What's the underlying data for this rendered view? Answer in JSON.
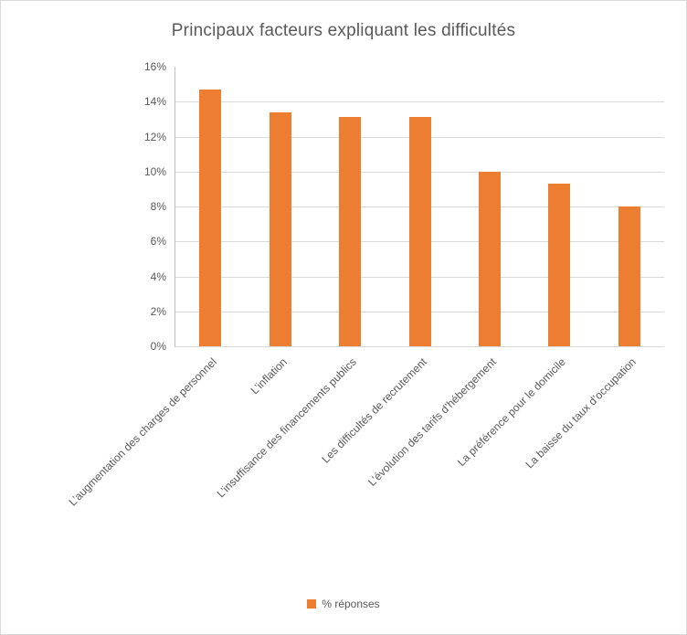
{
  "chart_data": {
    "type": "bar",
    "title": "Principaux facteurs expliquant les difficultés",
    "categories": [
      "L’augmentation des charges de personnel",
      "L’inflation",
      "L’insuffisance des financements publics",
      "Les difficultés de recrutement",
      "L’évolution des tarifs d’hébergement",
      "La préférence pour le domicile",
      "La baisse du taux d’occupation"
    ],
    "values": [
      14.7,
      13.4,
      13.1,
      13.1,
      10.0,
      9.3,
      8.0
    ],
    "series_name": "% réponses",
    "xlabel": "",
    "ylabel": "",
    "ylim": [
      0,
      16
    ],
    "y_tick_step": 2,
    "y_tick_labels": [
      "0%",
      "2%",
      "4%",
      "6%",
      "8%",
      "10%",
      "12%",
      "14%",
      "16%"
    ],
    "bar_color": "#ED7D31",
    "grid": true,
    "legend_position": "bottom"
  },
  "legend": {
    "label": "% réponses"
  }
}
